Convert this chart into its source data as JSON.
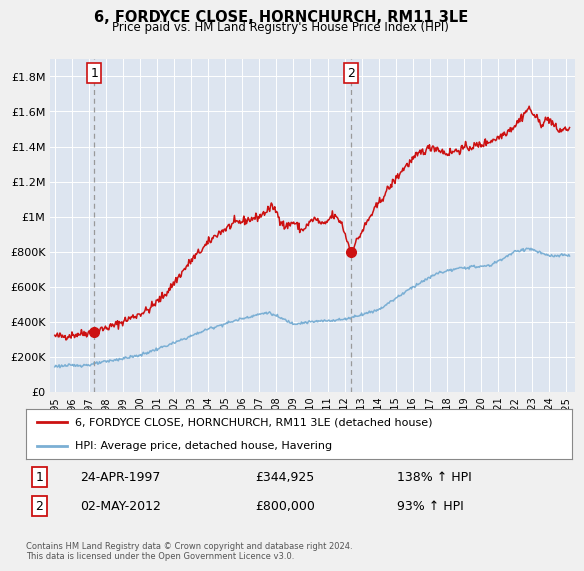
{
  "title": "6, FORDYCE CLOSE, HORNCHURCH, RM11 3LE",
  "subtitle": "Price paid vs. HM Land Registry's House Price Index (HPI)",
  "legend_label_red": "6, FORDYCE CLOSE, HORNCHURCH, RM11 3LE (detached house)",
  "legend_label_blue": "HPI: Average price, detached house, Havering",
  "table_rows": [
    {
      "num": "1",
      "date": "24-APR-1997",
      "price": "£344,925",
      "hpi": "138% ↑ HPI"
    },
    {
      "num": "2",
      "date": "02-MAY-2012",
      "price": "£800,000",
      "hpi": "93% ↑ HPI"
    }
  ],
  "footer": "Contains HM Land Registry data © Crown copyright and database right 2024.\nThis data is licensed under the Open Government Licence v3.0.",
  "ylim": [
    0,
    1900000
  ],
  "yticks": [
    0,
    200000,
    400000,
    600000,
    800000,
    1000000,
    1200000,
    1400000,
    1600000,
    1800000
  ],
  "ytick_labels": [
    "£0",
    "£200K",
    "£400K",
    "£600K",
    "£800K",
    "£1M",
    "£1.2M",
    "£1.4M",
    "£1.6M",
    "£1.8M"
  ],
  "bg_color": "#f0f0f0",
  "plot_bg_color": "#dde5f0",
  "grid_color": "#ffffff",
  "red_color": "#cc1111",
  "blue_color": "#7bafd4",
  "vline_color": "#999999",
  "marker1_x": 1997.31,
  "marker1_y": 344925,
  "marker2_x": 2012.37,
  "marker2_y": 800000,
  "vline1_x": 1997.31,
  "vline2_x": 2012.37,
  "xmin": 1994.7,
  "xmax": 2025.5
}
